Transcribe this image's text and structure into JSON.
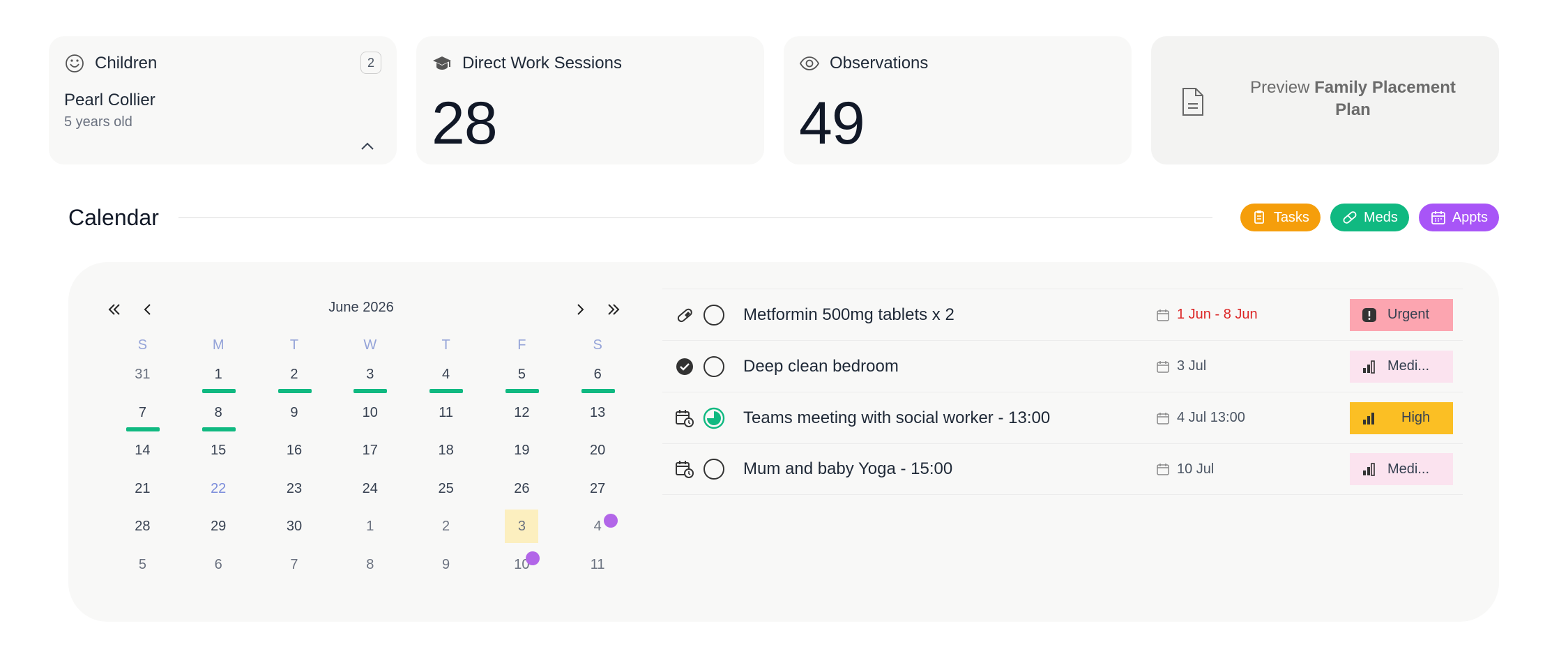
{
  "cards": {
    "children": {
      "title": "Children",
      "count": "2",
      "child_name": "Pearl Collier",
      "child_age": "5 years old"
    },
    "sessions": {
      "title": "Direct Work Sessions",
      "value": "28"
    },
    "observations": {
      "title": "Observations",
      "value": "49"
    },
    "preview": {
      "prefix": "Preview",
      "name": "Family Placement Plan"
    }
  },
  "calendar": {
    "title": "Calendar",
    "filters": {
      "tasks": "Tasks",
      "meds": "Meds",
      "appts": "Appts"
    },
    "month_label": "June 2026",
    "weekdays": [
      "S",
      "M",
      "T",
      "W",
      "T",
      "F",
      "S"
    ],
    "weeks": [
      [
        "31",
        "1",
        "2",
        "3",
        "4",
        "5",
        "6"
      ],
      [
        "7",
        "8",
        "9",
        "10",
        "11",
        "12",
        "13"
      ],
      [
        "14",
        "15",
        "16",
        "17",
        "18",
        "19",
        "20"
      ],
      [
        "21",
        "22",
        "23",
        "24",
        "25",
        "26",
        "27"
      ],
      [
        "28",
        "29",
        "30",
        "1",
        "2",
        "3",
        "4"
      ],
      [
        "5",
        "6",
        "7",
        "8",
        "9",
        "10",
        "11"
      ]
    ]
  },
  "events": [
    {
      "type_icon": "pill-icon",
      "title": "Metformin 500mg tablets x 2",
      "date": "1 Jun - 8 Jun",
      "priority": "Urgent"
    },
    {
      "type_icon": "check-circle-icon",
      "title": "Deep clean bedroom",
      "date": "3 Jul",
      "priority": "Medi..."
    },
    {
      "type_icon": "calendar-clock-icon",
      "title": "Teams meeting with social worker - 13:00",
      "date": "4 Jul 13:00",
      "priority": "High"
    },
    {
      "type_icon": "calendar-clock-icon",
      "title": "Mum and baby Yoga - 15:00",
      "date": "10 Jul",
      "priority": "Medi..."
    }
  ],
  "colors": {
    "meds_green": "#10b981",
    "tasks_orange": "#f59e0b",
    "appts_purple": "#a855f7",
    "urgent_bg": "#fca5b0",
    "high_bg": "#fbbf24",
    "medium_bg": "#fbe3ef",
    "selected_day_bg": "#fcefbf"
  }
}
